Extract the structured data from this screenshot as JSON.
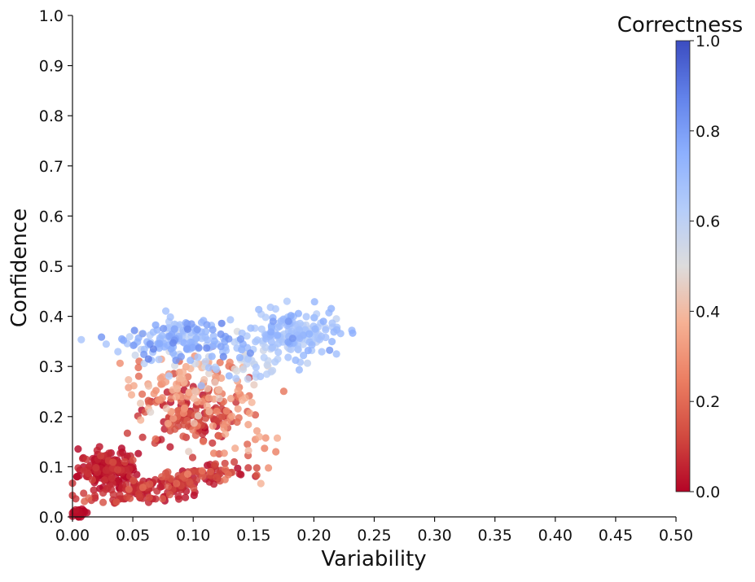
{
  "chart_data": {
    "type": "scatter",
    "title": "",
    "xlabel": "Variability",
    "ylabel": "Confidence",
    "xlim": [
      0.0,
      0.5
    ],
    "ylim": [
      0.0,
      1.0
    ],
    "xticks": [
      "0.00",
      "0.05",
      "0.10",
      "0.15",
      "0.20",
      "0.25",
      "0.30",
      "0.35",
      "0.40",
      "0.45",
      "0.50"
    ],
    "yticks": [
      "0.0",
      "0.1",
      "0.2",
      "0.3",
      "0.4",
      "0.5",
      "0.6",
      "0.7",
      "0.8",
      "0.9",
      "1.0"
    ],
    "colorbar": {
      "label": "Correctness",
      "range": [
        0.0,
        1.0
      ],
      "ticks": [
        "0.0",
        "0.2",
        "0.4",
        "0.6",
        "0.8",
        "1.0"
      ],
      "colormap": "coolwarm_r",
      "low_color": "#b40426",
      "mid_color": "#dddddd",
      "high_color": "#3b4cc0"
    },
    "clusters": [
      {
        "name": "near-origin",
        "x": 0.006,
        "y": 0.008,
        "sx": 0.003,
        "sy": 0.005,
        "count": 25,
        "c": 0.0,
        "cs": 0.02
      },
      {
        "name": "low-left-main",
        "x": 0.03,
        "y": 0.095,
        "sx": 0.012,
        "sy": 0.018,
        "count": 170,
        "c": 0.02,
        "cs": 0.04
      },
      {
        "name": "low-diagonal-band",
        "x": 0.06,
        "y": 0.06,
        "sx": 0.028,
        "sy": 0.022,
        "count": 130,
        "c": 0.06,
        "cs": 0.06
      },
      {
        "name": "lower-right-band",
        "x": 0.105,
        "y": 0.085,
        "sx": 0.02,
        "sy": 0.018,
        "count": 60,
        "c": 0.08,
        "cs": 0.06
      },
      {
        "name": "mid-red-band",
        "x": 0.1,
        "y": 0.2,
        "sx": 0.022,
        "sy": 0.028,
        "count": 130,
        "c": 0.08,
        "cs": 0.07
      },
      {
        "name": "mid-salmon",
        "x": 0.095,
        "y": 0.26,
        "sx": 0.025,
        "sy": 0.035,
        "count": 120,
        "c": 0.3,
        "cs": 0.08
      },
      {
        "name": "upper-left-blue",
        "x": 0.09,
        "y": 0.35,
        "sx": 0.022,
        "sy": 0.022,
        "count": 170,
        "c": 0.7,
        "cs": 0.08
      },
      {
        "name": "upper-right-blue",
        "x": 0.185,
        "y": 0.365,
        "sx": 0.018,
        "sy": 0.022,
        "count": 170,
        "c": 0.66,
        "cs": 0.06
      },
      {
        "name": "bridge-light",
        "x": 0.145,
        "y": 0.3,
        "sx": 0.015,
        "sy": 0.025,
        "count": 45,
        "c": 0.58,
        "cs": 0.07
      },
      {
        "name": "scatter-salmon-right",
        "x": 0.135,
        "y": 0.17,
        "sx": 0.02,
        "sy": 0.04,
        "count": 35,
        "c": 0.25,
        "cs": 0.08
      }
    ]
  }
}
